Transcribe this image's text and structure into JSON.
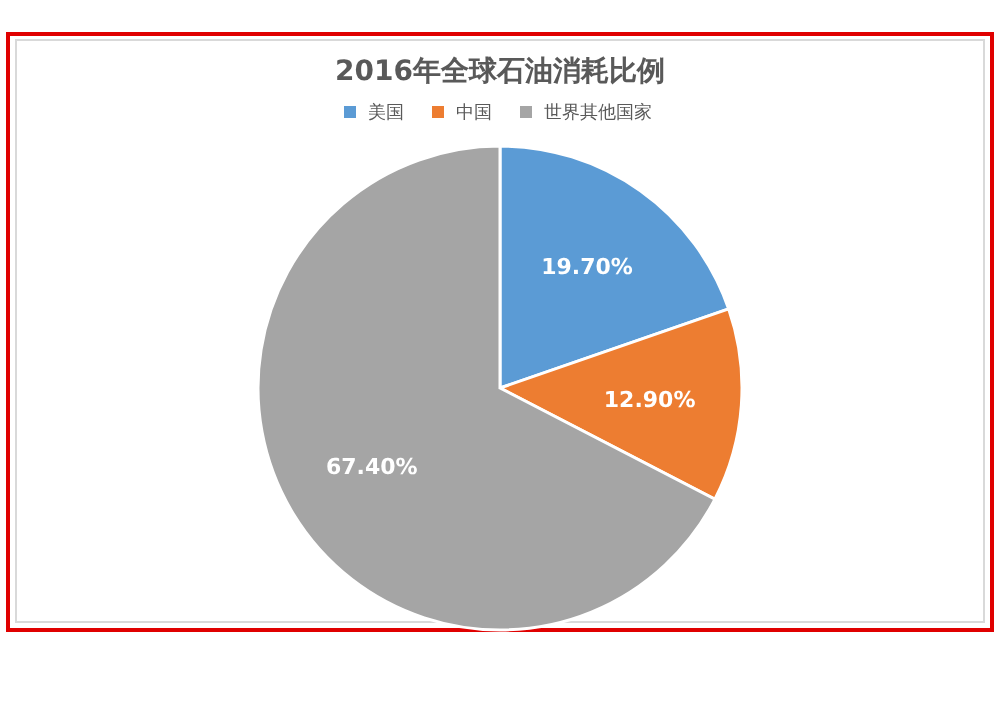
{
  "chart_data": {
    "type": "pie",
    "title": "2016年全球石油消耗比例",
    "categories": [
      "美国",
      "中国",
      "世界其他国家"
    ],
    "values": [
      19.7,
      12.9,
      67.4
    ],
    "colors": [
      "#5b9bd5",
      "#ed7d31",
      "#a5a5a5"
    ],
    "value_labels": [
      "19.70%",
      "12.90%",
      "67.40%"
    ],
    "legend": "top"
  }
}
